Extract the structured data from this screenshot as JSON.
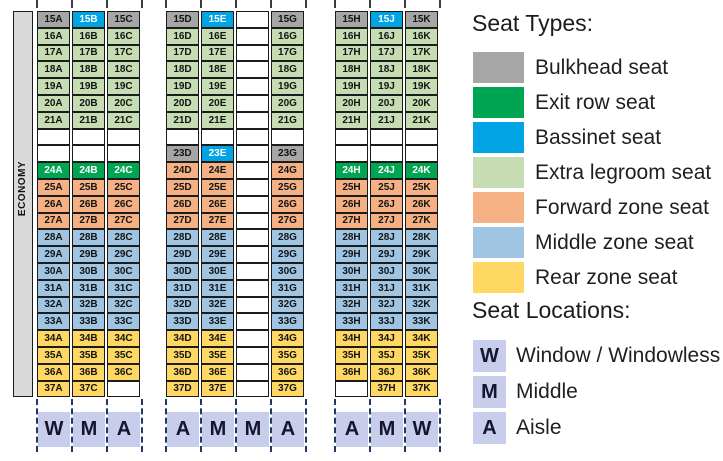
{
  "seat_map": {
    "cabin_label": "ECONOMY",
    "blocks": [
      {
        "name": "left-block-ABC",
        "column_letters": [
          "W",
          "M",
          "A"
        ],
        "rows": [
          [
            "15A|bulkhead",
            "15B|bassinet",
            "15C|bulkhead"
          ],
          [
            "16A|extra",
            "16B|extra",
            "16C|extra"
          ],
          [
            "17A|extra",
            "17B|extra",
            "17C|extra"
          ],
          [
            "18A|extra",
            "18B|extra",
            "18C|extra"
          ],
          [
            "19A|extra",
            "19B|extra",
            "19C|extra"
          ],
          [
            "20A|extra",
            "20B|extra",
            "20C|extra"
          ],
          [
            "21A|extra",
            "21B|extra",
            "21C|extra"
          ],
          [
            "",
            "",
            ""
          ],
          [
            "",
            "",
            ""
          ],
          [
            "24A|exit",
            "24B|exit",
            "24C|exit"
          ],
          [
            "25A|forward",
            "25B|forward",
            "25C|forward"
          ],
          [
            "26A|forward",
            "26B|forward",
            "26C|forward"
          ],
          [
            "27A|forward",
            "27B|forward",
            "27C|forward"
          ],
          [
            "28A|middle",
            "28B|middle",
            "28C|middle"
          ],
          [
            "29A|middle",
            "29B|middle",
            "29C|middle"
          ],
          [
            "30A|middle",
            "30B|middle",
            "30C|middle"
          ],
          [
            "31A|middle",
            "31B|middle",
            "31C|middle"
          ],
          [
            "32A|middle",
            "32B|middle",
            "32C|middle"
          ],
          [
            "33A|middle",
            "33B|middle",
            "33C|middle"
          ],
          [
            "34A|rear",
            "34B|rear",
            "34C|rear"
          ],
          [
            "35A|rear",
            "35B|rear",
            "35C|rear"
          ],
          [
            "36A|rear",
            "36B|rear",
            "36C|rear"
          ],
          [
            "37A|rear",
            "37C|rear",
            ""
          ]
        ]
      },
      {
        "name": "center-block-DEFG",
        "column_letters": [
          "A",
          "M",
          "M",
          "A"
        ],
        "rows": [
          [
            "15D|bulkhead",
            "15E|bassinet",
            "",
            "15G|bulkhead"
          ],
          [
            "16D|extra",
            "16E|extra",
            "",
            "16G|extra"
          ],
          [
            "17D|extra",
            "17E|extra",
            "",
            "17G|extra"
          ],
          [
            "18D|extra",
            "18E|extra",
            "",
            "18G|extra"
          ],
          [
            "19D|extra",
            "19E|extra",
            "",
            "19G|extra"
          ],
          [
            "20D|extra",
            "20E|extra",
            "",
            "20G|extra"
          ],
          [
            "21D|extra",
            "21E|extra",
            "",
            "21G|extra"
          ],
          [
            "",
            "",
            "",
            ""
          ],
          [
            "23D|bulkhead",
            "23E|bassinet",
            "",
            "23G|bulkhead"
          ],
          [
            "24D|forward",
            "24E|forward",
            "",
            "24G|forward"
          ],
          [
            "25D|forward",
            "25E|forward",
            "",
            "25G|forward"
          ],
          [
            "26D|forward",
            "26E|forward",
            "",
            "26G|forward"
          ],
          [
            "27D|forward",
            "27E|forward",
            "",
            "27G|forward"
          ],
          [
            "28D|middle",
            "28E|middle",
            "",
            "28G|middle"
          ],
          [
            "29D|middle",
            "29E|middle",
            "",
            "29G|middle"
          ],
          [
            "30D|middle",
            "30E|middle",
            "",
            "30G|middle"
          ],
          [
            "31D|middle",
            "31E|middle",
            "",
            "31G|middle"
          ],
          [
            "32D|middle",
            "32E|middle",
            "",
            "32G|middle"
          ],
          [
            "33D|middle",
            "33E|middle",
            "",
            "33G|middle"
          ],
          [
            "34D|rear",
            "34E|rear",
            "",
            "34G|rear"
          ],
          [
            "35D|rear",
            "35E|rear",
            "",
            "35G|rear"
          ],
          [
            "36D|rear",
            "36E|rear",
            "",
            "36G|rear"
          ],
          [
            "37D|rear",
            "37E|rear",
            "",
            "37G|rear"
          ]
        ]
      },
      {
        "name": "right-block-HJK",
        "column_letters": [
          "A",
          "M",
          "W"
        ],
        "rows": [
          [
            "15H|bulkhead",
            "15J|bassinet",
            "15K|bulkhead"
          ],
          [
            "16H|extra",
            "16J|extra",
            "16K|extra"
          ],
          [
            "17H|extra",
            "17J|extra",
            "17K|extra"
          ],
          [
            "18H|extra",
            "18J|extra",
            "18K|extra"
          ],
          [
            "19H|extra",
            "19J|extra",
            "19K|extra"
          ],
          [
            "20H|extra",
            "20J|extra",
            "20K|extra"
          ],
          [
            "21H|extra",
            "21J|extra",
            "21K|extra"
          ],
          [
            "",
            "",
            ""
          ],
          [
            "",
            "",
            ""
          ],
          [
            "24H|exit",
            "24J|exit",
            "24K|exit"
          ],
          [
            "25H|forward",
            "25J|forward",
            "25K|forward"
          ],
          [
            "26H|forward",
            "26J|forward",
            "26K|forward"
          ],
          [
            "27H|forward",
            "27J|forward",
            "27K|forward"
          ],
          [
            "28H|middle",
            "28J|middle",
            "28K|middle"
          ],
          [
            "29H|middle",
            "29J|middle",
            "29K|middle"
          ],
          [
            "30H|middle",
            "30J|middle",
            "30K|middle"
          ],
          [
            "31H|middle",
            "31J|middle",
            "31K|middle"
          ],
          [
            "32H|middle",
            "32J|middle",
            "32K|middle"
          ],
          [
            "33H|middle",
            "33J|middle",
            "33K|middle"
          ],
          [
            "34H|rear",
            "34J|rear",
            "34K|rear"
          ],
          [
            "35H|rear",
            "35J|rear",
            "35K|rear"
          ],
          [
            "36H|rear",
            "36J|rear",
            "36K|rear"
          ],
          [
            "",
            "37H|rear",
            "37K|rear"
          ]
        ]
      }
    ]
  },
  "colors": {
    "bulkhead": "#a6a6a6",
    "exit": "#00a551",
    "bassinet": "#00a4e4",
    "extra": "#c6dcb2",
    "forward": "#f5b183",
    "middle": "#9fc5e3",
    "rear": "#ffd763",
    "location_box": "#c8cdeb",
    "dashed_line": "#1f3864",
    "economy_bar": "#d9d9d9"
  },
  "legend": {
    "types_title": "Seat Types:",
    "types": [
      {
        "label": "Bulkhead seat",
        "type": "bulkhead"
      },
      {
        "label": "Exit row seat",
        "type": "exit"
      },
      {
        "label": "Bassinet seat",
        "type": "bassinet"
      },
      {
        "label": "Extra legroom seat",
        "type": "extra"
      },
      {
        "label": "Forward zone seat",
        "type": "forward"
      },
      {
        "label": "Middle zone seat",
        "type": "middle"
      },
      {
        "label": "Rear zone seat",
        "type": "rear"
      }
    ],
    "locations_title": "Seat Locations:",
    "locations": [
      {
        "code": "W",
        "label": "Window / Windowless"
      },
      {
        "code": "M",
        "label": "Middle"
      },
      {
        "code": "A",
        "label": "Aisle"
      }
    ]
  }
}
